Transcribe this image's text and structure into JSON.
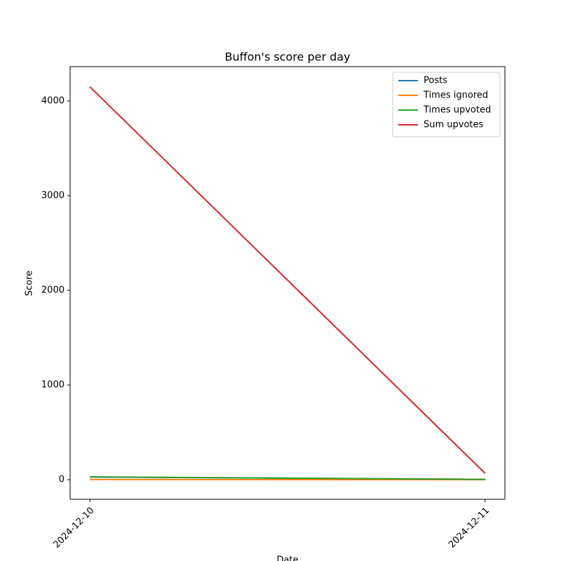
{
  "chart_data": {
    "type": "line",
    "title": "Buffon's score per day",
    "xlabel": "Date",
    "ylabel": "Score",
    "x": [
      "2024-12-10",
      "2024-12-11"
    ],
    "series": [
      {
        "name": "Posts",
        "color": "#1f77b4",
        "values": [
          28,
          3
        ]
      },
      {
        "name": "Times ignored",
        "color": "#ff7f0e",
        "values": [
          2,
          0
        ]
      },
      {
        "name": "Times upvoted",
        "color": "#2ca02c",
        "values": [
          30,
          3
        ]
      },
      {
        "name": "Sum upvotes",
        "color": "#d62728",
        "values": [
          4150,
          67
        ]
      }
    ],
    "ylim": [
      -207,
      4363
    ],
    "yticks": [
      0,
      1000,
      2000,
      3000,
      4000
    ],
    "legend": "upper right"
  }
}
